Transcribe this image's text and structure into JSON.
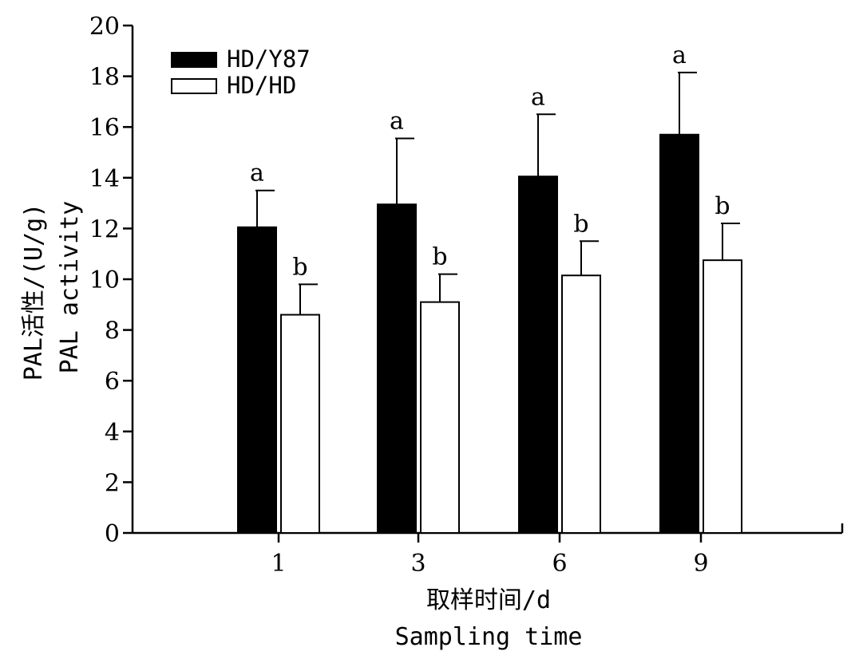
{
  "chart_data": {
    "type": "bar",
    "categories": [
      "1",
      "3",
      "6",
      "9"
    ],
    "series": [
      {
        "name": "HD/Y87",
        "color": "#000000",
        "values": [
          12.05,
          12.95,
          14.05,
          15.7
        ],
        "errors": [
          1.45,
          2.6,
          2.45,
          2.45
        ],
        "labels": [
          "a",
          "a",
          "a",
          "a"
        ]
      },
      {
        "name": "HD/HD",
        "color": "#ffffff",
        "values": [
          8.6,
          9.1,
          10.15,
          10.75
        ],
        "errors": [
          1.2,
          1.1,
          1.35,
          1.45
        ],
        "labels": [
          "b",
          "b",
          "b",
          "b"
        ]
      }
    ],
    "y_ticks": [
      "0",
      "2",
      "4",
      "6",
      "8",
      "10",
      "12",
      "14",
      "16",
      "18",
      "20"
    ],
    "ylim": [
      0,
      20
    ],
    "ylabel_line1": "PAL活性/(U/g)",
    "ylabel_line2": "PAL activity",
    "xlabel_line1": "取样时间/d",
    "xlabel_line2": "Sampling time",
    "legend_position": "top-left",
    "grid": false
  }
}
